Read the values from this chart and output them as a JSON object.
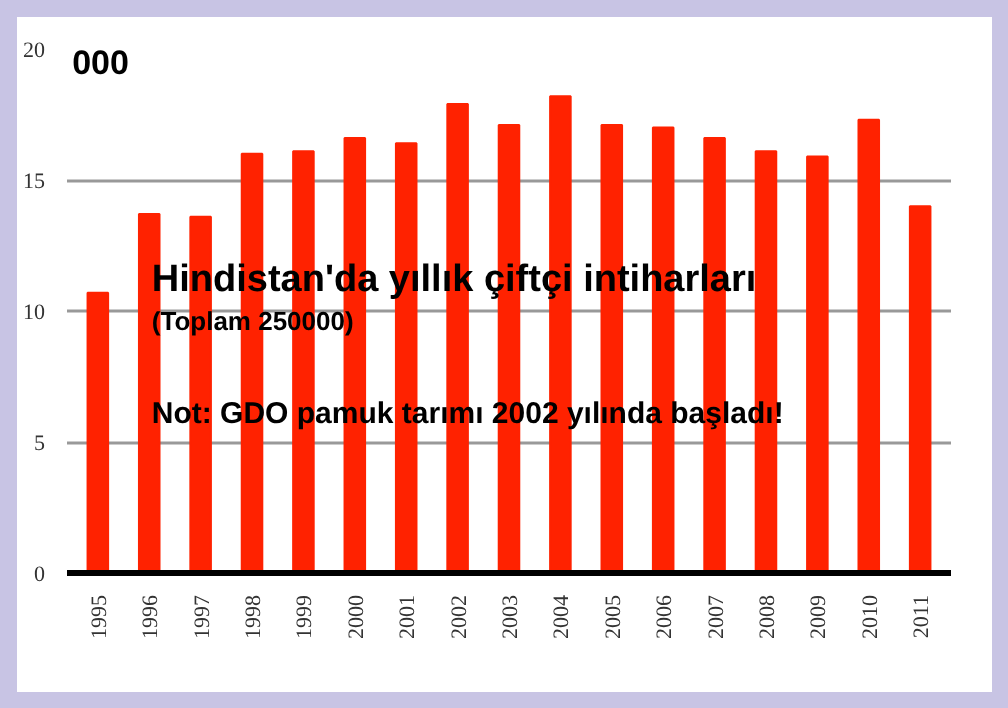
{
  "chart_data": {
    "type": "bar",
    "title": "Hindistan'da yıllık çiftçi intiharları",
    "subtitle": "(Toplam 250000)",
    "annotations": [
      "000",
      "Not: GDO pamuk tarımı 2002 yılında başladı!"
    ],
    "categories": [
      "1995",
      "1996",
      "1997",
      "1998",
      "1999",
      "2000",
      "2001",
      "2002",
      "2003",
      "2004",
      "2005",
      "2006",
      "2007",
      "2008",
      "2009",
      "2010",
      "2011"
    ],
    "values": [
      10.7,
      13.7,
      13.6,
      16.0,
      16.1,
      16.6,
      16.4,
      17.9,
      17.1,
      18.2,
      17.1,
      17.0,
      16.6,
      16.1,
      15.9,
      17.3,
      14.0
    ],
    "color": "#ff2200",
    "ylim": [
      0,
      20
    ],
    "yticks": [
      0,
      5,
      10,
      15,
      20
    ],
    "grid": "y"
  }
}
